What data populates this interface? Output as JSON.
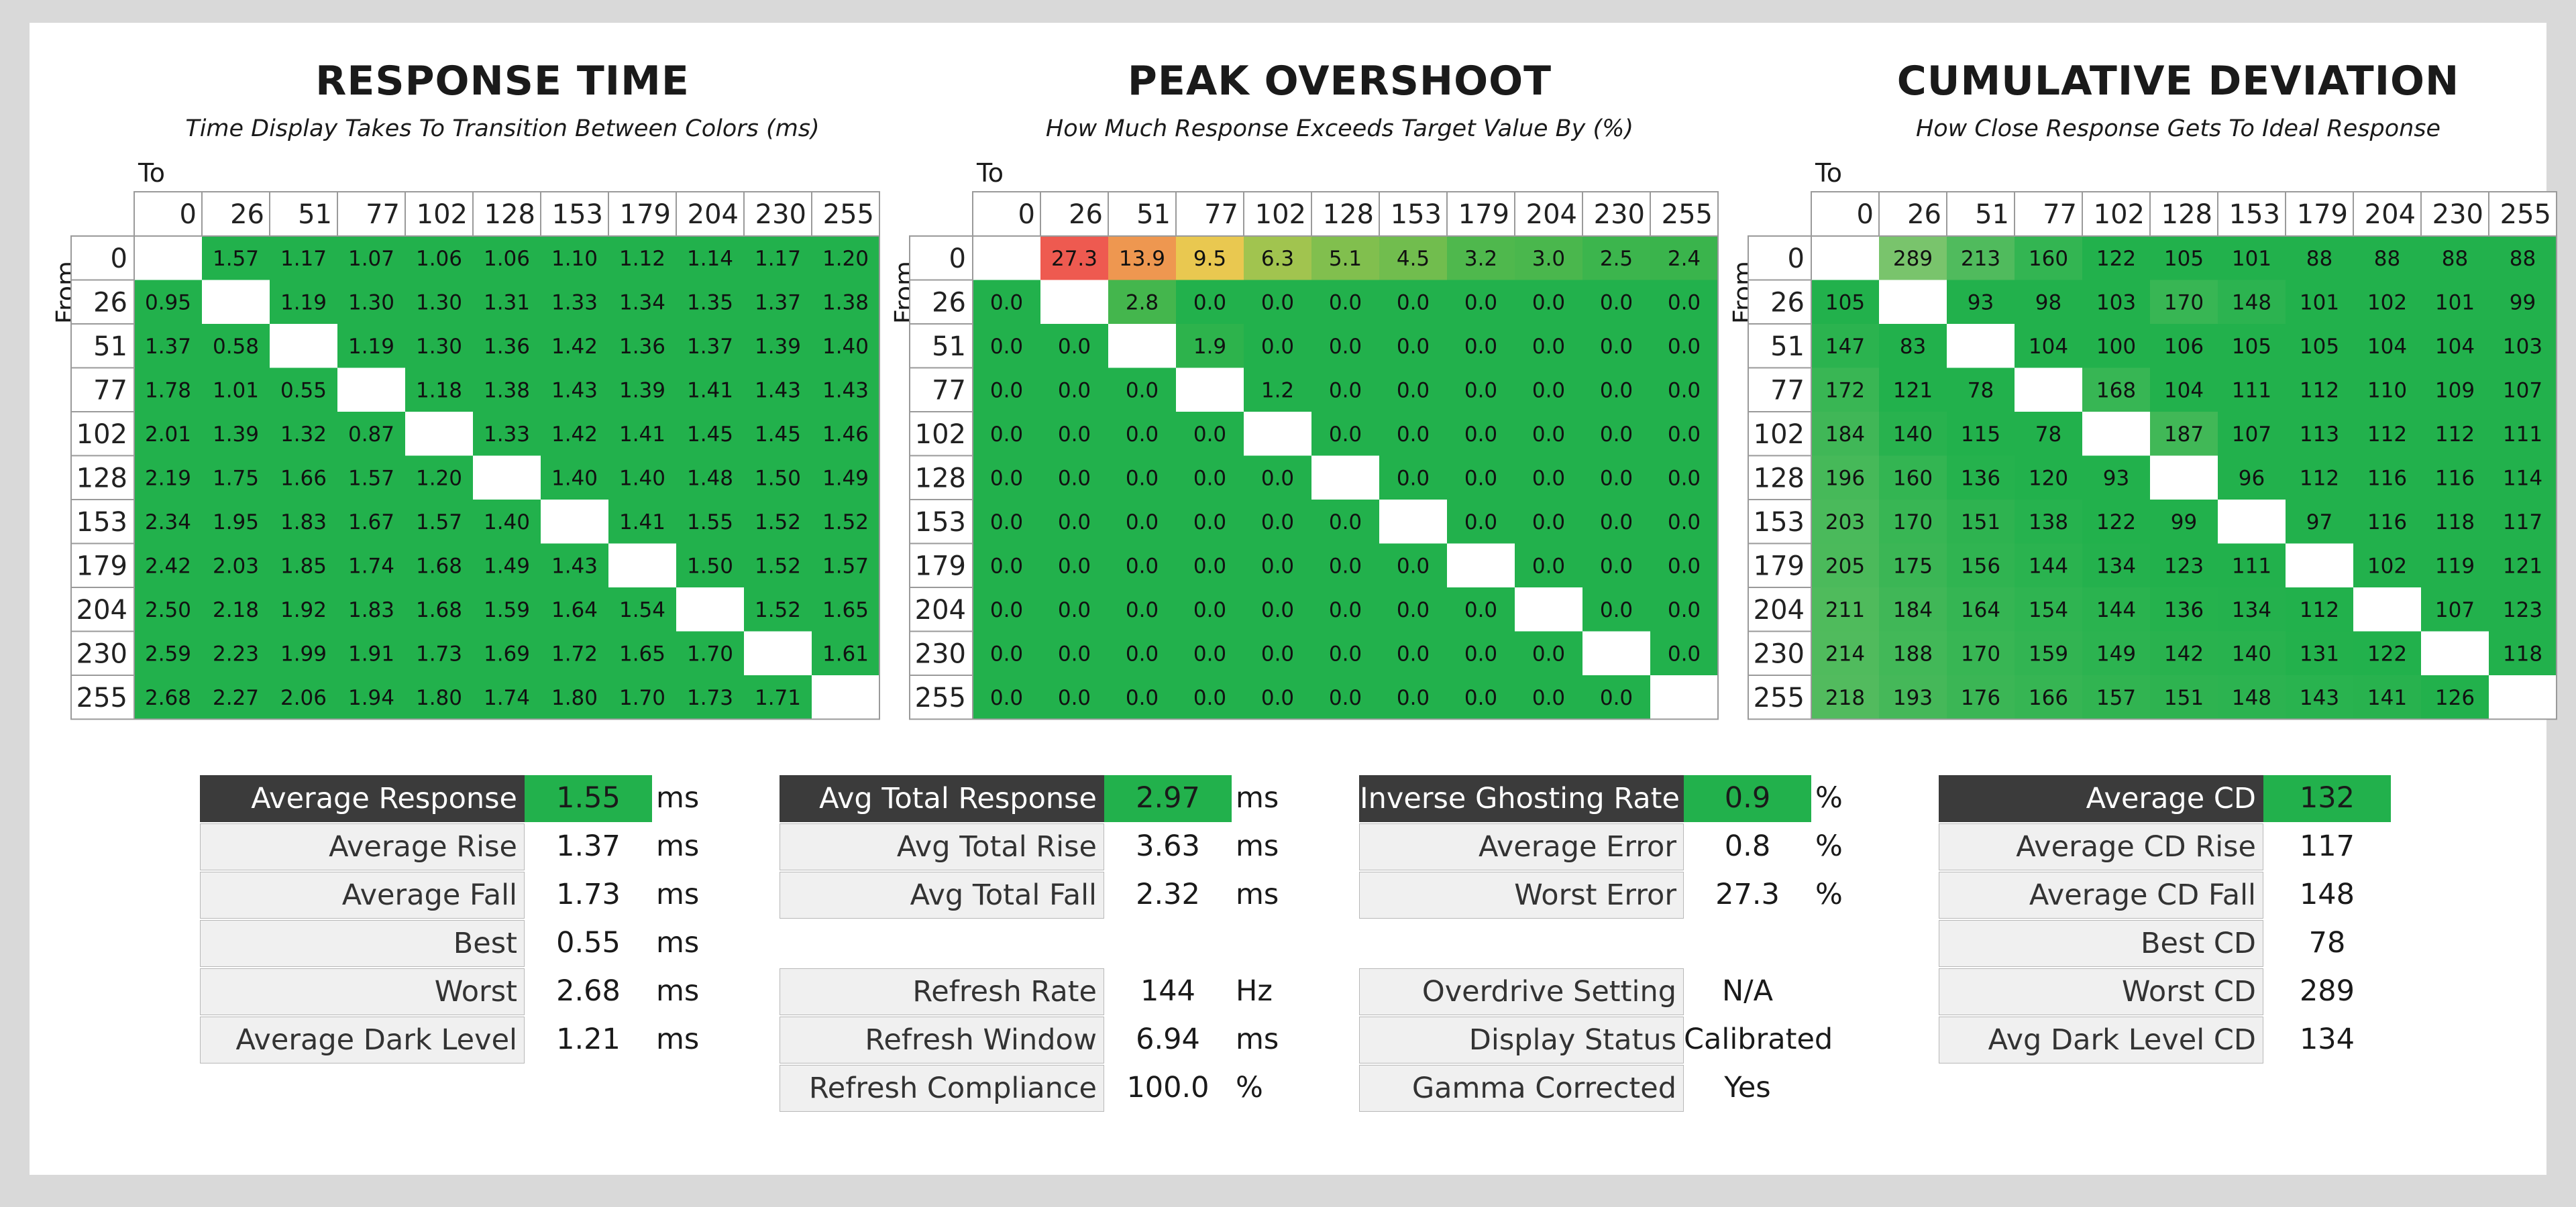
{
  "axis_values": [
    "0",
    "26",
    "51",
    "77",
    "102",
    "128",
    "153",
    "179",
    "204",
    "230",
    "255"
  ],
  "axis_to_label": "To",
  "axis_from_label": "From",
  "chart_data": [
    {
      "type": "heatmap",
      "title": "RESPONSE TIME",
      "subtitle": "Time Display Takes To Transition Between Colors (ms)",
      "x_axis_label": "To",
      "y_axis_label": "From",
      "format": "2",
      "rows": [
        [
          null,
          1.57,
          1.17,
          1.07,
          1.06,
          1.06,
          1.1,
          1.12,
          1.14,
          1.17,
          1.2
        ],
        [
          0.95,
          null,
          1.19,
          1.3,
          1.3,
          1.31,
          1.33,
          1.34,
          1.35,
          1.37,
          1.38
        ],
        [
          1.37,
          0.58,
          null,
          1.19,
          1.3,
          1.36,
          1.42,
          1.36,
          1.37,
          1.39,
          1.4
        ],
        [
          1.78,
          1.01,
          0.55,
          null,
          1.18,
          1.38,
          1.43,
          1.39,
          1.41,
          1.43,
          1.43
        ],
        [
          2.01,
          1.39,
          1.32,
          0.87,
          null,
          1.33,
          1.42,
          1.41,
          1.45,
          1.45,
          1.46
        ],
        [
          2.19,
          1.75,
          1.66,
          1.57,
          1.2,
          null,
          1.4,
          1.4,
          1.48,
          1.5,
          1.49
        ],
        [
          2.34,
          1.95,
          1.83,
          1.67,
          1.57,
          1.4,
          null,
          1.41,
          1.55,
          1.52,
          1.52
        ],
        [
          2.42,
          2.03,
          1.85,
          1.74,
          1.68,
          1.49,
          1.43,
          null,
          1.5,
          1.52,
          1.57
        ],
        [
          2.5,
          2.18,
          1.92,
          1.83,
          1.68,
          1.59,
          1.64,
          1.54,
          null,
          1.52,
          1.65
        ],
        [
          2.59,
          2.23,
          1.99,
          1.91,
          1.73,
          1.69,
          1.72,
          1.65,
          1.7,
          null,
          1.61
        ],
        [
          2.68,
          2.27,
          2.06,
          1.94,
          1.8,
          1.74,
          1.8,
          1.7,
          1.73,
          1.71,
          null
        ]
      ]
    },
    {
      "type": "heatmap",
      "title": "PEAK OVERSHOOT",
      "subtitle": "How Much Response Exceeds Target Value By (%)",
      "x_axis_label": "To",
      "y_axis_label": "From",
      "format": "1",
      "rows": [
        [
          null,
          27.3,
          13.9,
          9.5,
          6.3,
          5.1,
          4.5,
          3.2,
          3.0,
          2.5,
          2.4
        ],
        [
          0.0,
          null,
          2.8,
          0.0,
          0.0,
          0.0,
          0.0,
          0.0,
          0.0,
          0.0,
          0.0
        ],
        [
          0.0,
          0.0,
          null,
          1.9,
          0.0,
          0.0,
          0.0,
          0.0,
          0.0,
          0.0,
          0.0
        ],
        [
          0.0,
          0.0,
          0.0,
          null,
          1.2,
          0.0,
          0.0,
          0.0,
          0.0,
          0.0,
          0.0
        ],
        [
          0.0,
          0.0,
          0.0,
          0.0,
          null,
          0.0,
          0.0,
          0.0,
          0.0,
          0.0,
          0.0
        ],
        [
          0.0,
          0.0,
          0.0,
          0.0,
          0.0,
          null,
          0.0,
          0.0,
          0.0,
          0.0,
          0.0
        ],
        [
          0.0,
          0.0,
          0.0,
          0.0,
          0.0,
          0.0,
          null,
          0.0,
          0.0,
          0.0,
          0.0
        ],
        [
          0.0,
          0.0,
          0.0,
          0.0,
          0.0,
          0.0,
          0.0,
          null,
          0.0,
          0.0,
          0.0
        ],
        [
          0.0,
          0.0,
          0.0,
          0.0,
          0.0,
          0.0,
          0.0,
          0.0,
          null,
          0.0,
          0.0
        ],
        [
          0.0,
          0.0,
          0.0,
          0.0,
          0.0,
          0.0,
          0.0,
          0.0,
          0.0,
          null,
          0.0
        ],
        [
          0.0,
          0.0,
          0.0,
          0.0,
          0.0,
          0.0,
          0.0,
          0.0,
          0.0,
          0.0,
          null
        ]
      ]
    },
    {
      "type": "heatmap",
      "title": "CUMULATIVE DEVIATION",
      "subtitle": "How Close Response Gets To Ideal Response",
      "x_axis_label": "To",
      "y_axis_label": "From",
      "format": "0",
      "rows": [
        [
          null,
          289,
          213,
          160,
          122,
          105,
          101,
          88,
          88,
          88,
          88
        ],
        [
          105,
          null,
          93,
          98,
          103,
          170,
          148,
          101,
          102,
          101,
          99
        ],
        [
          147,
          83,
          null,
          104,
          100,
          106,
          105,
          105,
          104,
          104,
          103
        ],
        [
          172,
          121,
          78,
          null,
          168,
          104,
          111,
          112,
          110,
          109,
          107
        ],
        [
          184,
          140,
          115,
          78,
          null,
          187,
          107,
          113,
          112,
          112,
          111
        ],
        [
          196,
          160,
          136,
          120,
          93,
          null,
          96,
          112,
          116,
          116,
          114
        ],
        [
          203,
          170,
          151,
          138,
          122,
          99,
          null,
          97,
          116,
          118,
          117
        ],
        [
          205,
          175,
          156,
          144,
          134,
          123,
          111,
          null,
          102,
          119,
          121
        ],
        [
          211,
          184,
          164,
          154,
          144,
          136,
          134,
          112,
          null,
          107,
          123
        ],
        [
          214,
          188,
          170,
          159,
          149,
          142,
          140,
          131,
          122,
          null,
          118
        ],
        [
          218,
          193,
          176,
          166,
          157,
          151,
          148,
          143,
          141,
          126,
          null
        ]
      ]
    }
  ],
  "stats": {
    "response": {
      "rows": [
        {
          "label": "Average Response",
          "value": "1.55",
          "unit": "ms",
          "header": true
        },
        {
          "label": "Average Rise",
          "value": "1.37",
          "unit": "ms"
        },
        {
          "label": "Average Fall",
          "value": "1.73",
          "unit": "ms"
        },
        {
          "label": "Best",
          "value": "0.55",
          "unit": "ms"
        },
        {
          "label": "Worst",
          "value": "2.68",
          "unit": "ms"
        },
        {
          "label": "Average Dark Level",
          "value": "1.21",
          "unit": "ms"
        }
      ]
    },
    "total": {
      "rows": [
        {
          "label": "Avg Total Response",
          "value": "2.97",
          "unit": "ms",
          "header": true
        },
        {
          "label": "Avg Total Rise",
          "value": "3.63",
          "unit": "ms"
        },
        {
          "label": "Avg Total Fall",
          "value": "2.32",
          "unit": "ms"
        }
      ],
      "rows2": [
        {
          "label": "Refresh Rate",
          "value": "144",
          "unit": "Hz"
        },
        {
          "label": "Refresh Window",
          "value": "6.94",
          "unit": "ms"
        },
        {
          "label": "Refresh Compliance",
          "value": "100.0",
          "unit": "%"
        }
      ]
    },
    "overshoot": {
      "rows": [
        {
          "label": "Inverse Ghosting Rate",
          "value": "0.9",
          "unit": "%",
          "header": true
        },
        {
          "label": "Average Error",
          "value": "0.8",
          "unit": "%"
        },
        {
          "label": "Worst Error",
          "value": "27.3",
          "unit": "%"
        }
      ],
      "rows2": [
        {
          "label": "Overdrive Setting",
          "value": "N/A",
          "unit": ""
        },
        {
          "label": "Display Status",
          "value": "Calibrated",
          "unit": ""
        },
        {
          "label": "Gamma Corrected",
          "value": "Yes",
          "unit": ""
        }
      ]
    },
    "cd": {
      "rows": [
        {
          "label": "Average CD",
          "value": "132",
          "unit": "",
          "header": true
        },
        {
          "label": "Average CD Rise",
          "value": "117",
          "unit": ""
        },
        {
          "label": "Average CD Fall",
          "value": "148",
          "unit": ""
        },
        {
          "label": "Best CD",
          "value": "78",
          "unit": ""
        },
        {
          "label": "Worst CD",
          "value": "289",
          "unit": ""
        },
        {
          "label": "Avg Dark Level CD",
          "value": "134",
          "unit": ""
        }
      ]
    }
  },
  "colors": {
    "good": "#22b14c",
    "header_bg": "#3b3b3b",
    "label_bg": "#f0f0f0"
  }
}
